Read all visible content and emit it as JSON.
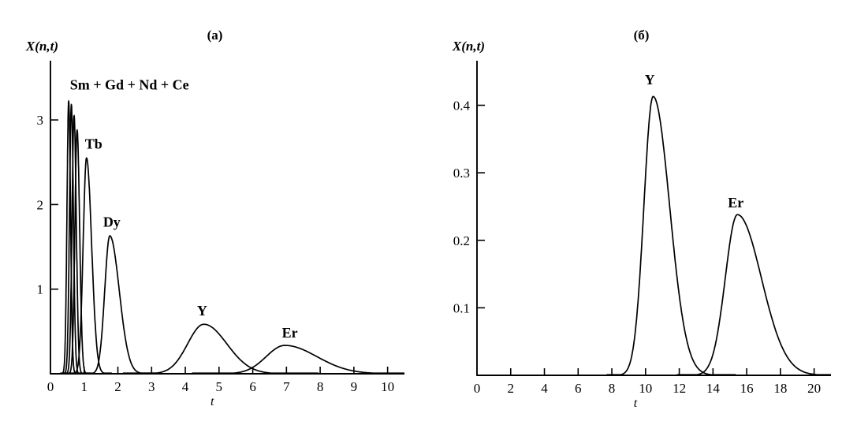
{
  "figure": {
    "description": "Two-panel distribution curves figure",
    "colors": {
      "background": "#ffffff",
      "curve": "#000000",
      "text": "#000000"
    }
  },
  "chart_data": [
    {
      "id": "a",
      "type": "line",
      "title": "(a)",
      "ylabel": "X(n,t)",
      "xlabel": "t",
      "xlabel_t": 4.8,
      "xlim": [
        0,
        10.5
      ],
      "ylim": [
        0,
        3.7
      ],
      "x_ticks": [
        0,
        1,
        2,
        3,
        4,
        5,
        6,
        7,
        8,
        9,
        10
      ],
      "y_ticks": [
        1,
        2,
        3
      ],
      "grid": false,
      "annotations": [
        {
          "text": "Sm + Gd + Nd + Ce",
          "t": 0.58,
          "value": 3.36,
          "anchor": "start"
        }
      ],
      "series": [
        {
          "name": "Sm",
          "label": null,
          "peak_t": 0.54,
          "peak_value": 3.22,
          "sigma_left": 0.05,
          "sigma_right": 0.055
        },
        {
          "name": "Gd",
          "label": null,
          "peak_t": 0.62,
          "peak_value": 3.18,
          "sigma_left": 0.055,
          "sigma_right": 0.06
        },
        {
          "name": "Nd",
          "label": null,
          "peak_t": 0.7,
          "peak_value": 3.05,
          "sigma_left": 0.06,
          "sigma_right": 0.065
        },
        {
          "name": "Ce",
          "label": null,
          "peak_t": 0.79,
          "peak_value": 2.88,
          "sigma_left": 0.065,
          "sigma_right": 0.075
        },
        {
          "name": "Tb",
          "label": {
            "text": "Tb",
            "t": 1.28,
            "value": 2.66
          },
          "peak_t": 1.07,
          "peak_value": 2.55,
          "sigma_left": 0.1,
          "sigma_right": 0.15
        },
        {
          "name": "Dy",
          "label": {
            "text": "Dy",
            "t": 1.82,
            "value": 1.74
          },
          "peak_t": 1.76,
          "peak_value": 1.63,
          "sigma_left": 0.15,
          "sigma_right": 0.28
        },
        {
          "name": "Y",
          "label": {
            "text": "Y",
            "t": 4.5,
            "value": 0.69
          },
          "peak_t": 4.55,
          "peak_value": 0.585,
          "sigma_left": 0.48,
          "sigma_right": 0.68
        },
        {
          "name": "Er",
          "label": {
            "text": "Er",
            "t": 7.1,
            "value": 0.43
          },
          "peak_t": 6.95,
          "peak_value": 0.335,
          "sigma_left": 0.55,
          "sigma_right": 0.95
        }
      ]
    },
    {
      "id": "b",
      "type": "line",
      "title": "(б)",
      "ylabel": "X(n,t)",
      "xlabel": "t",
      "xlabel_t": 9.4,
      "xlim": [
        0,
        21
      ],
      "ylim": [
        0,
        0.466
      ],
      "x_ticks": [
        0,
        2,
        4,
        6,
        8,
        10,
        12,
        14,
        16,
        18,
        20
      ],
      "y_ticks": [
        0.1,
        0.2,
        0.3,
        0.4
      ],
      "grid": false,
      "annotations": [],
      "series": [
        {
          "name": "Y",
          "label": {
            "text": "Y",
            "t": 10.25,
            "value": 0.431
          },
          "peak_t": 10.45,
          "peak_value": 0.413,
          "sigma_left": 0.55,
          "sigma_right": 0.98
        },
        {
          "name": "Er",
          "label": {
            "text": "Er",
            "t": 15.35,
            "value": 0.249
          },
          "peak_t": 15.45,
          "peak_value": 0.238,
          "sigma_left": 0.72,
          "sigma_right": 1.42
        }
      ]
    }
  ]
}
